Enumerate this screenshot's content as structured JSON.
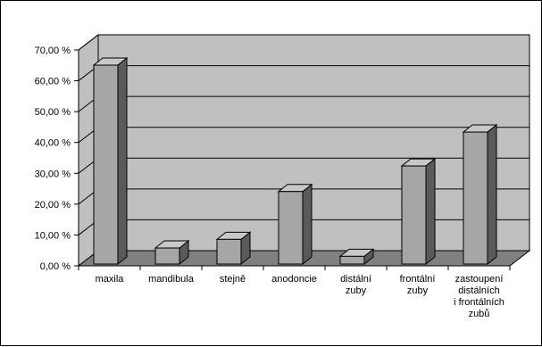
{
  "chart_data": {
    "type": "bar",
    "style": "3d",
    "categories": [
      [
        "maxila"
      ],
      [
        "mandibula"
      ],
      [
        "stejně"
      ],
      [
        "anodoncie"
      ],
      [
        "distální",
        "zuby"
      ],
      [
        "frontální",
        "zuby"
      ],
      [
        "zastoupení",
        "distálních",
        "i frontálních",
        "zubů"
      ]
    ],
    "values": [
      64.5,
      5.2,
      8.0,
      23.5,
      2.5,
      31.8,
      42.8
    ],
    "y_ticks": [
      "0,00 %",
      "10,00 %",
      "20,00 %",
      "30,00 %",
      "40,00 %",
      "50,00 %",
      "60,00 %",
      "70,00 %"
    ],
    "ylim": [
      0,
      70
    ],
    "grid": true,
    "legend": false,
    "colors": {
      "wall": "#c0c0c0",
      "floor": "#808080",
      "bar_front": "#a6a6a6",
      "bar_top": "#c8c8c8",
      "bar_side": "#5a5a5a",
      "grid": "#000000"
    }
  }
}
